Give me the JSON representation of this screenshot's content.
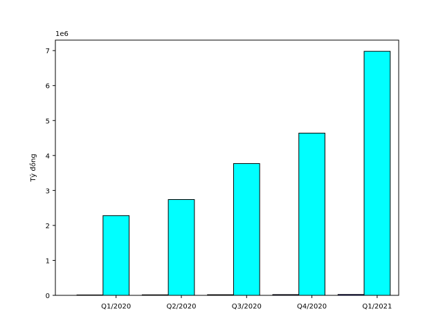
{
  "chart_data": {
    "type": "bar",
    "categories": [
      "Q1/2020",
      "Q2/2020",
      "Q3/2020",
      "Q4/2020",
      "Q1/2021"
    ],
    "series": [
      {
        "values": [
          12000,
          15000,
          18000,
          21000,
          24000
        ],
        "color": "#0000ff"
      },
      {
        "values": [
          2280000,
          2740000,
          3770000,
          4640000,
          6980000
        ],
        "color": "#00ffff"
      }
    ],
    "ylabel": "Tỷ đồng",
    "offset_label": "1e6",
    "ylim": [
      0,
      7300000
    ],
    "yticks": [
      0,
      1000000,
      2000000,
      3000000,
      4000000,
      5000000,
      6000000,
      7000000
    ],
    "ytick_labels": [
      "0",
      "1",
      "2",
      "3",
      "4",
      "5",
      "6",
      "7"
    ],
    "grid": false,
    "legend": false
  }
}
